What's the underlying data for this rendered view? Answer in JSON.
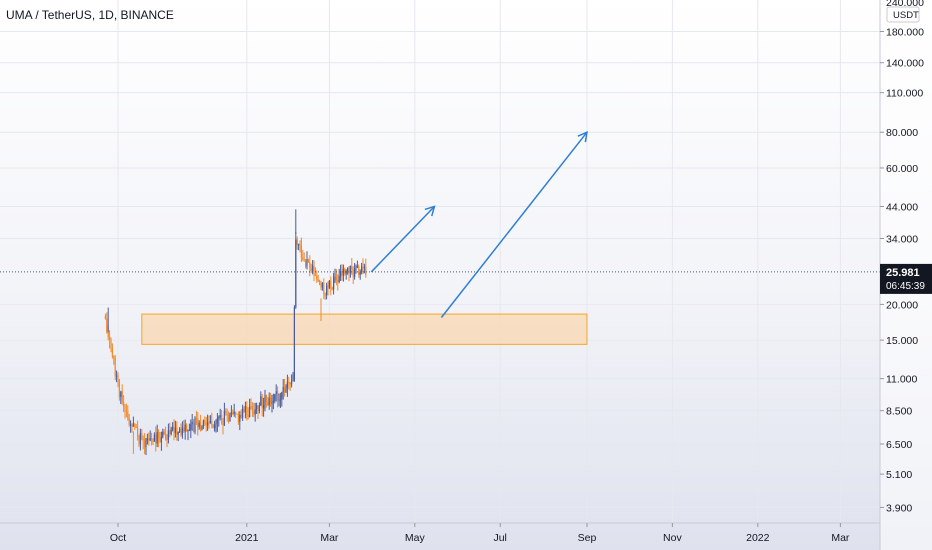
{
  "header": {
    "symbol": "UMA / TetherUS",
    "separator1": ", ",
    "interval": "1D",
    "separator2": ", ",
    "exchange": "BINANCE"
  },
  "price_axis": {
    "unit": "USDT",
    "top_partial_label": "240.000",
    "ticks": [
      "180.000",
      "140.000",
      "110.000",
      "80.000",
      "60.000",
      "44.000",
      "34.000",
      "20.000",
      "15.000",
      "11.000",
      "8.500",
      "6.500",
      "5.100",
      "3.900"
    ]
  },
  "last_price": {
    "value": "25.981",
    "countdown": "06:45:39"
  },
  "colors": {
    "up": "#26a69a",
    "down": "#ef5350",
    "candle_up": "#4a5a9a",
    "candle_down": "#f08a2c",
    "zone_fill": "#f9d7b0",
    "zone_border": "#f5a623",
    "arrow": "#2f7fd3",
    "price_line": "#4a5a78",
    "badge": "#131722"
  },
  "chart_data": {
    "type": "candlestick",
    "scale": "log",
    "ylim": [
      3.5,
      240
    ],
    "x_ticks": [
      "Oct",
      "2021",
      "Mar",
      "May",
      "Jul",
      "Sep",
      "Nov",
      "2022",
      "Mar"
    ],
    "candle_segments": [
      {
        "from": "2020-09-22",
        "to": "2020-10-05",
        "start": 17.5,
        "end": 8.5
      },
      {
        "from": "2020-10-05",
        "to": "2020-10-18",
        "start": 8.5,
        "end": 6.6
      },
      {
        "from": "2020-10-18",
        "to": "2020-11-20",
        "start": 6.6,
        "end": 7.5
      },
      {
        "from": "2020-11-20",
        "to": "2020-12-25",
        "start": 7.5,
        "end": 8.2
      },
      {
        "from": "2020-12-25",
        "to": "2021-01-20",
        "start": 8.2,
        "end": 9.5
      },
      {
        "from": "2021-01-20",
        "to": "2021-02-03",
        "start": 9.5,
        "end": 10.5
      },
      {
        "from": "2021-02-03",
        "to": "2021-02-05",
        "start": 10.5,
        "end": 33
      },
      {
        "from": "2021-02-05",
        "to": "2021-02-25",
        "start": 33,
        "end": 22
      },
      {
        "from": "2021-02-25",
        "to": "2021-03-12",
        "start": 22,
        "end": 26
      },
      {
        "from": "2021-03-12",
        "to": "2021-03-28",
        "start": 26,
        "end": 25.98
      }
    ],
    "notable_points": [
      {
        "date": "2020-09-24",
        "high": 19.5
      },
      {
        "date": "2020-10-12",
        "low": 6.0
      },
      {
        "date": "2021-02-05",
        "high": 43
      },
      {
        "date": "2021-02-23",
        "low": 17.5
      }
    ],
    "last_price": 25.981,
    "support_zone": {
      "from": "2020-10-18",
      "to": "2021-09-01",
      "low": 14.5,
      "high": 18.5
    },
    "projection_arrows": [
      {
        "from_date": "2021-03-31",
        "to_date": "2021-05-15",
        "from_price": 26,
        "to_price": 44
      },
      {
        "from_date": "2021-05-20",
        "to_date": "2021-09-01",
        "from_price": 18,
        "to_price": 80
      }
    ]
  }
}
